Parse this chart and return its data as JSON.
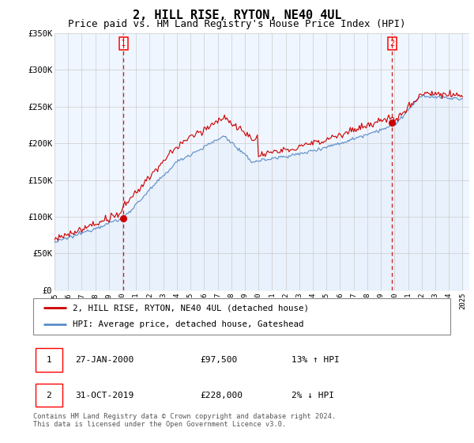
{
  "title": "2, HILL RISE, RYTON, NE40 4UL",
  "subtitle": "Price paid vs. HM Land Registry's House Price Index (HPI)",
  "ylabel_ticks": [
    "£0",
    "£50K",
    "£100K",
    "£150K",
    "£200K",
    "£250K",
    "£300K",
    "£350K"
  ],
  "ylim": [
    0,
    350000
  ],
  "yticks": [
    0,
    50000,
    100000,
    150000,
    200000,
    250000,
    300000,
    350000
  ],
  "sale1": {
    "date_num": 2000.07,
    "price": 97500,
    "label": "1",
    "date_str": "27-JAN-2000"
  },
  "sale2": {
    "date_num": 2019.83,
    "price": 228000,
    "label": "2",
    "date_str": "31-OCT-2019"
  },
  "hpi_line_color": "#5b8dc8",
  "hpi_fill_color": "#dce9f7",
  "sale_line_color": "#cc0000",
  "vline_color": "#cc0000",
  "legend_label_red": "2, HILL RISE, RYTON, NE40 4UL (detached house)",
  "legend_label_blue": "HPI: Average price, detached house, Gateshead",
  "table_row1": [
    "1",
    "27-JAN-2000",
    "£97,500",
    "13% ↑ HPI"
  ],
  "table_row2": [
    "2",
    "31-OCT-2019",
    "£228,000",
    "2% ↓ HPI"
  ],
  "footnote": "Contains HM Land Registry data © Crown copyright and database right 2024.\nThis data is licensed under the Open Government Licence v3.0.",
  "background_color": "#ffffff",
  "grid_color": "#cccccc",
  "title_fontsize": 11,
  "subtitle_fontsize": 9,
  "tick_fontsize": 8
}
